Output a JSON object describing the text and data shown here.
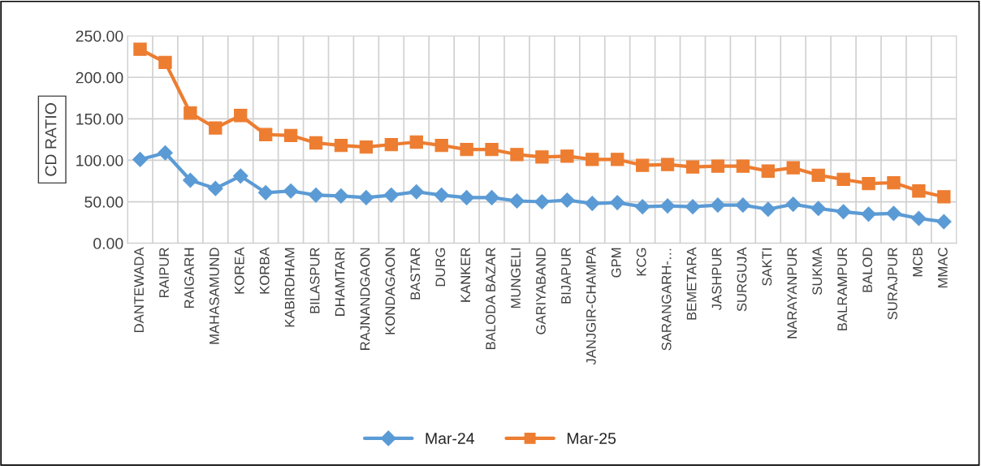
{
  "chart_data": {
    "type": "line",
    "ylabel": "CD RATIO",
    "categories": [
      "DANTEWADA",
      "RAIPUR",
      "RAIGARH",
      "MAHASAMUND",
      "KOREA",
      "KORBA",
      "KABIRDHAM",
      "BILASPUR",
      "DHAMTARI",
      "RAJNANDGAON",
      "KONDAGAON",
      "BASTAR",
      "DURG",
      "KANKER",
      "BALODA BAZAR",
      "MUNGELI",
      "GARIYABAND",
      "BIJAPUR",
      "JANJGIR-CHAMPA",
      "GPM",
      "KCG",
      "SARANGARH-…",
      "BEMETARA",
      "JASHPUR",
      "SURGUJA",
      "SAKTI",
      "NARAYANPUR",
      "SUKMA",
      "BALRAMPUR",
      "BALOD",
      "SURAJPUR",
      "MCB",
      "MMAC"
    ],
    "series": [
      {
        "name": "Mar-24",
        "color": "#5b9bd5",
        "marker": "diamond",
        "values": [
          101,
          109,
          76,
          66,
          81,
          61,
          63,
          58,
          57,
          55,
          58,
          62,
          58,
          55,
          55,
          51,
          50,
          52,
          48,
          49,
          44,
          45,
          44,
          46,
          46,
          41,
          47,
          42,
          38,
          35,
          36,
          30,
          26
        ]
      },
      {
        "name": "Mar-25",
        "color": "#ed7d31",
        "marker": "square",
        "values": [
          234,
          218,
          157,
          139,
          154,
          131,
          130,
          121,
          118,
          116,
          119,
          122,
          118,
          113,
          113,
          107,
          104,
          105,
          101,
          101,
          94,
          95,
          92,
          93,
          93,
          87,
          91,
          82,
          77,
          72,
          73,
          63,
          56
        ]
      }
    ],
    "ylim": [
      0,
      250
    ],
    "yticks": [
      {
        "value": 0,
        "label": "0.00"
      },
      {
        "value": 50,
        "label": "50.00"
      },
      {
        "value": 100,
        "label": "100.00"
      },
      {
        "value": 150,
        "label": "150.00"
      },
      {
        "value": 200,
        "label": "200.00"
      },
      {
        "value": 250,
        "label": "250.00"
      }
    ],
    "grid": true,
    "legend": "bottom"
  }
}
